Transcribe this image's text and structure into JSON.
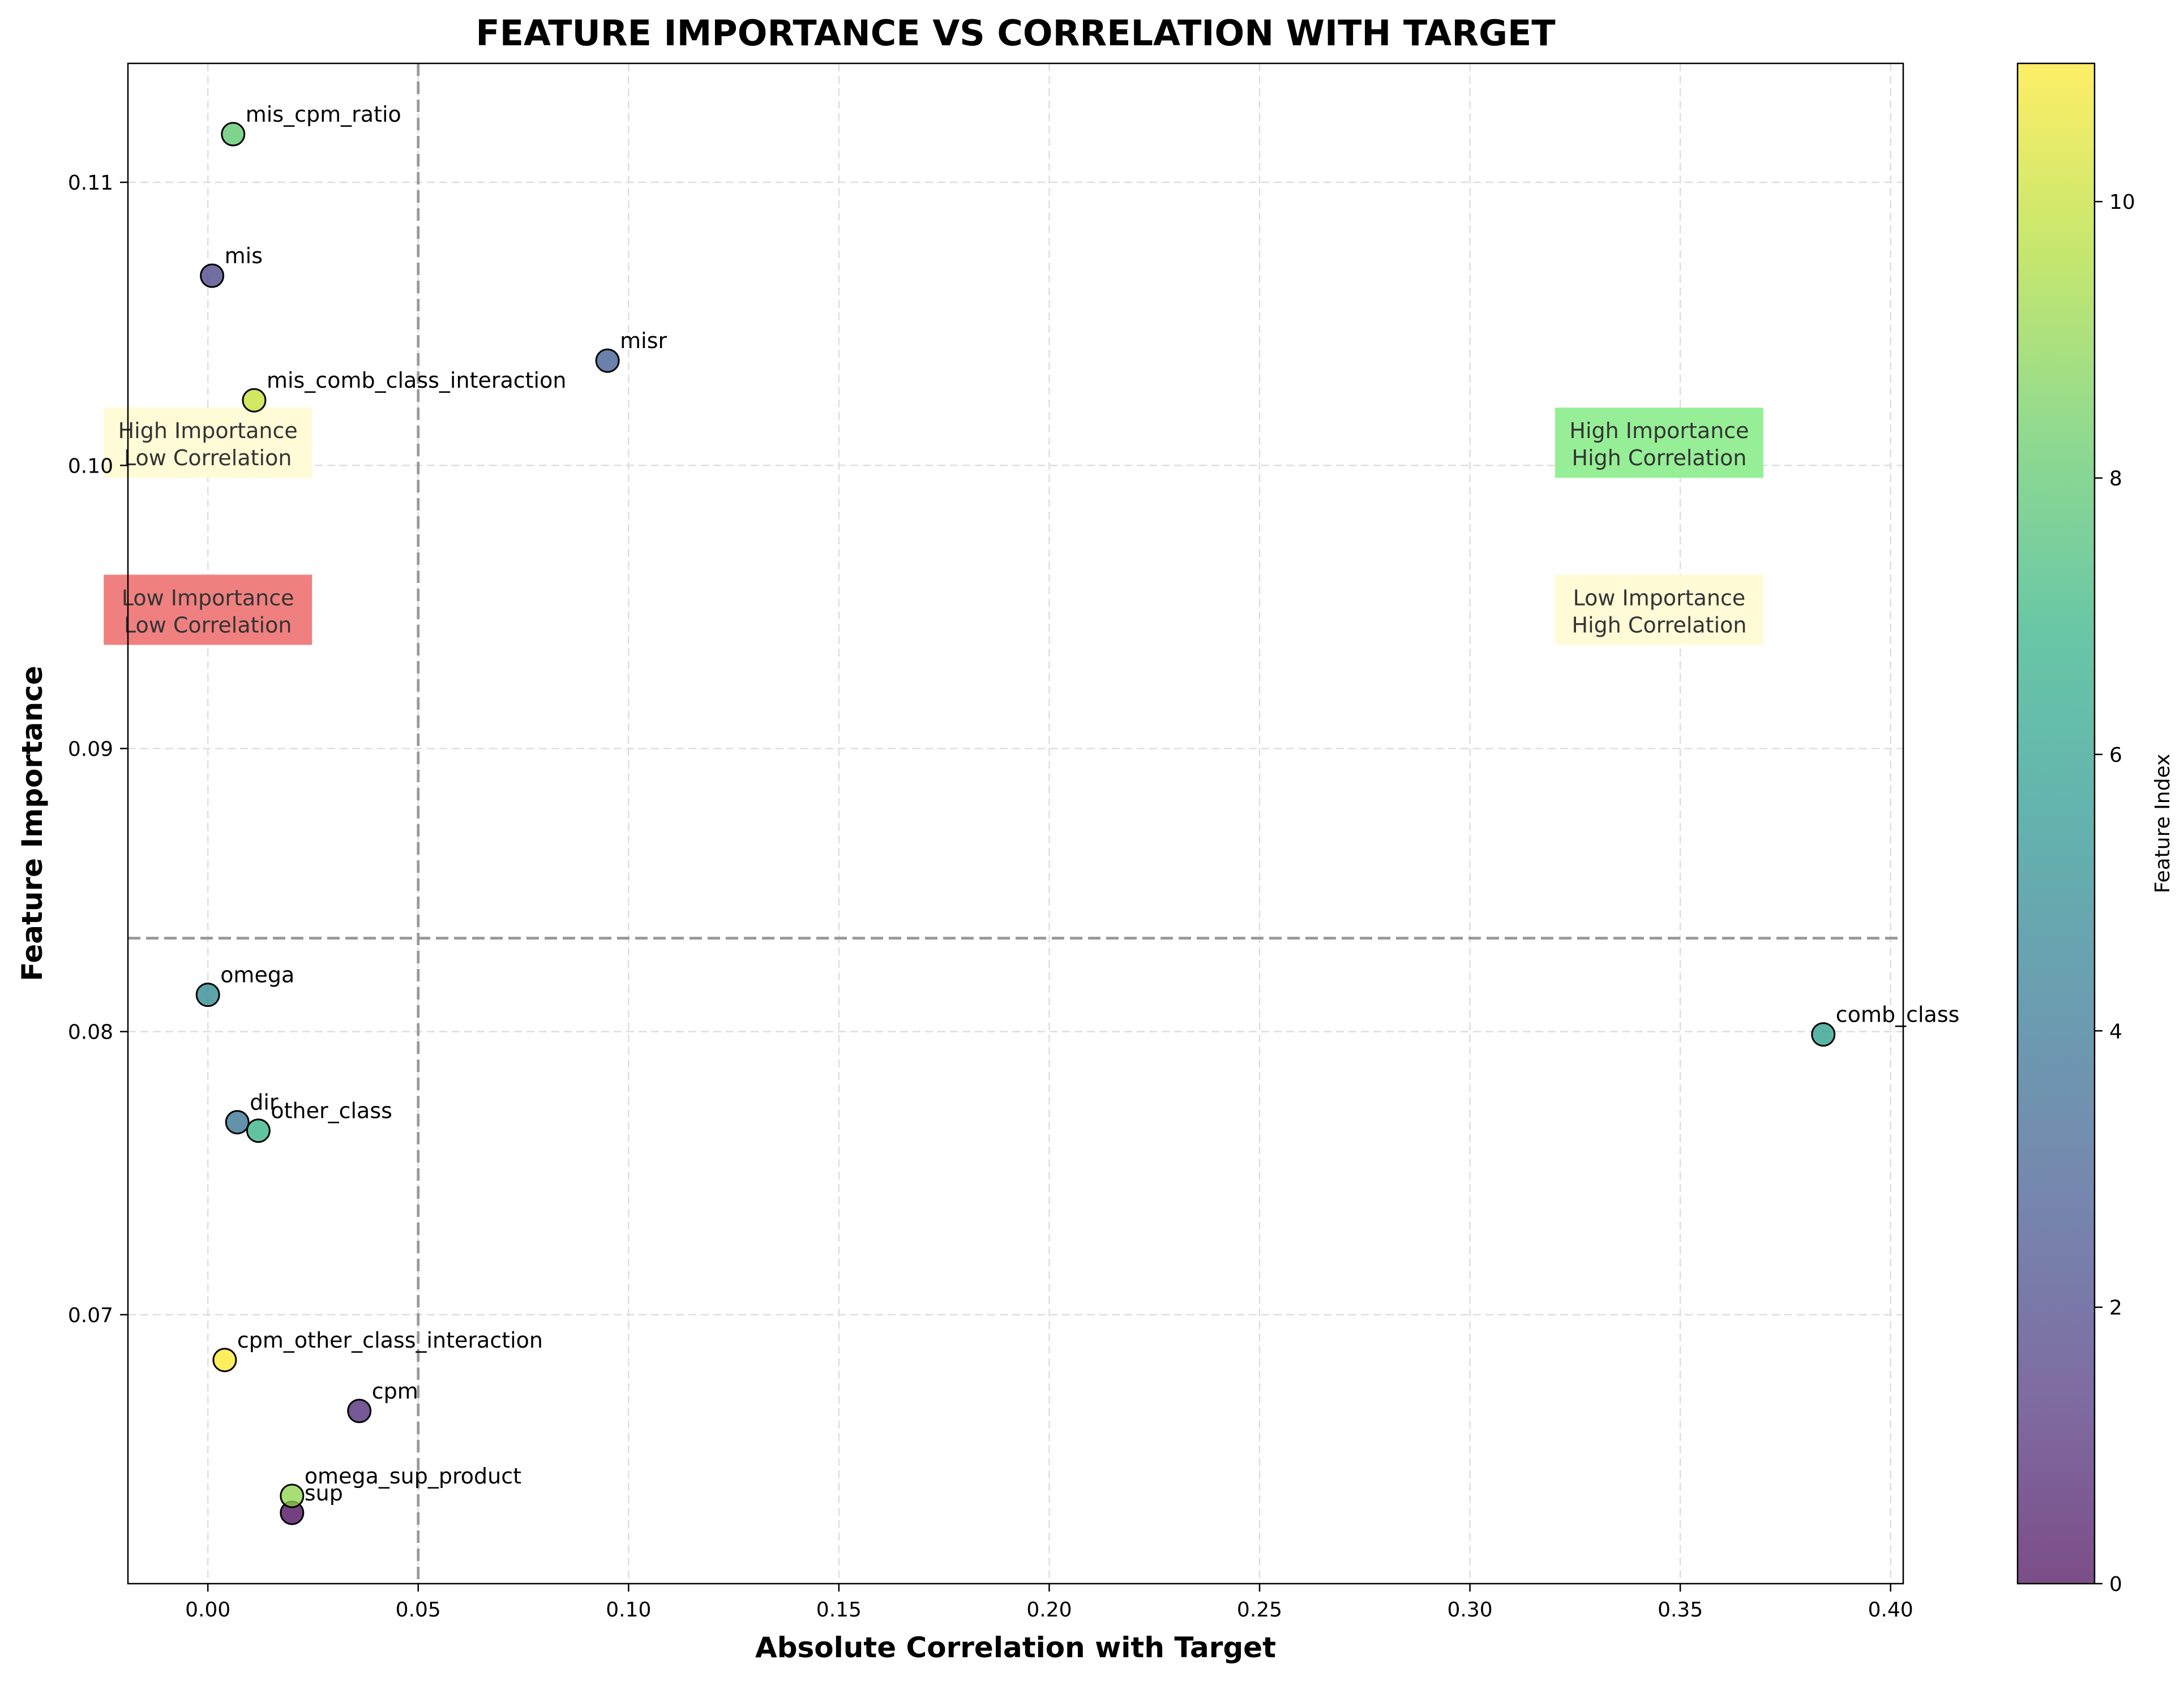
{
  "chart_data": {
    "type": "scatter",
    "title": "FEATURE IMPORTANCE VS CORRELATION WITH TARGET",
    "xlabel": "Absolute Correlation with Target",
    "ylabel": "Feature Importance",
    "xlim": [
      -0.019,
      0.403
    ],
    "ylim": [
      0.0605,
      0.1142
    ],
    "xticks": [
      0.0,
      0.05,
      0.1,
      0.15,
      0.2,
      0.25,
      0.3,
      0.35,
      0.4
    ],
    "xtick_labels": [
      "0.00",
      "0.05",
      "0.10",
      "0.15",
      "0.20",
      "0.25",
      "0.30",
      "0.35",
      "0.40"
    ],
    "yticks": [
      0.07,
      0.08,
      0.09,
      0.1,
      0.11
    ],
    "ytick_labels": [
      "0.07",
      "0.08",
      "0.09",
      "0.10",
      "0.11"
    ],
    "grid": true,
    "reference_lines": {
      "x": 0.05,
      "y": 0.0833
    },
    "colormap": "viridis",
    "colorbar": {
      "label": "Feature Index",
      "range": [
        0,
        11
      ],
      "ticks": [
        0,
        2,
        4,
        6,
        8,
        10
      ],
      "tick_labels": [
        "0",
        "2",
        "4",
        "6",
        "8",
        "10"
      ]
    },
    "points": [
      {
        "label": "sup",
        "x": 0.02,
        "y": 0.063,
        "index": 0
      },
      {
        "label": "cpm",
        "x": 0.036,
        "y": 0.0666,
        "index": 1
      },
      {
        "label": "mis",
        "x": 0.001,
        "y": 0.1067,
        "index": 2
      },
      {
        "label": "misr",
        "x": 0.095,
        "y": 0.1037,
        "index": 3
      },
      {
        "label": "dir",
        "x": 0.007,
        "y": 0.0768,
        "index": 4
      },
      {
        "label": "omega",
        "x": 0.0,
        "y": 0.0813,
        "index": 5
      },
      {
        "label": "comb_class",
        "x": 0.384,
        "y": 0.0799,
        "index": 6
      },
      {
        "label": "other_class",
        "x": 0.012,
        "y": 0.0765,
        "index": 7
      },
      {
        "label": "mis_cpm_ratio",
        "x": 0.006,
        "y": 0.1117,
        "index": 8
      },
      {
        "label": "omega_sup_product",
        "x": 0.02,
        "y": 0.0636,
        "index": 9
      },
      {
        "label": "mis_comb_class_interaction",
        "x": 0.011,
        "y": 0.1023,
        "index": 10
      },
      {
        "label": "cpm_other_class_interaction",
        "x": 0.004,
        "y": 0.0684,
        "index": 11
      }
    ],
    "quadrant_labels": [
      {
        "line1": "High Importance",
        "line2": "Low Correlation",
        "color": "#fffbd5"
      },
      {
        "line1": "Low Importance",
        "line2": "Low Correlation",
        "color": "#f08080"
      },
      {
        "line1": "High Importance",
        "line2": "High Correlation",
        "color": "#90ee90"
      },
      {
        "line1": "Low Importance",
        "line2": "High Correlation",
        "color": "#fffbd5"
      }
    ]
  }
}
